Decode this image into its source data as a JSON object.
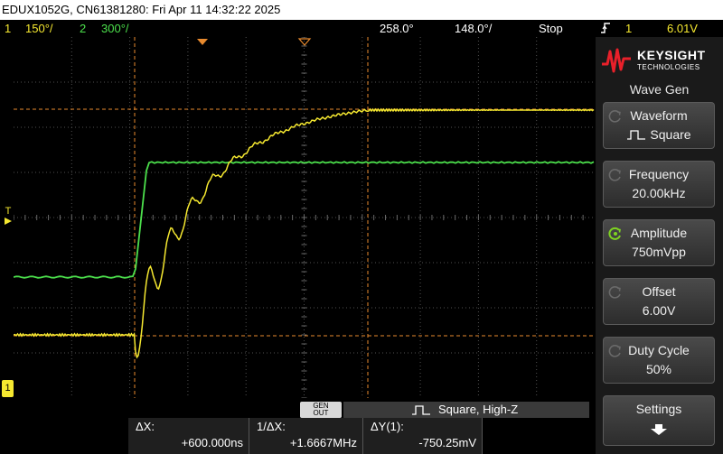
{
  "header": {
    "title": "EDUX1052G, CN61381280: Fri Apr 11 14:32:22 2025"
  },
  "status": {
    "ch1_num": "1",
    "ch1_scale": "150°/",
    "ch2_num": "2",
    "ch2_scale": "300°/",
    "timebase_delay": "258.0°",
    "timebase_scale": "148.0°/",
    "run_state": "Stop",
    "trigger_icon": "trigger-rising-edge-icon",
    "trigger_channel": "1",
    "trigger_level": "6.01V"
  },
  "brand": {
    "name_line1": "KEYSIGHT",
    "name_line2": "TECHNOLOGIES",
    "logo_icon": "keysight-wave-logo-icon",
    "logo_color": "#e8202a"
  },
  "menu": {
    "title": "Wave Gen",
    "softkeys": [
      {
        "label": "Waveform",
        "value": "Square",
        "value_icon": "square-wave-icon",
        "knob_active": false
      },
      {
        "label": "Frequency",
        "value": "20.00kHz",
        "knob_active": false
      },
      {
        "label": "Amplitude",
        "value": "750mVpp",
        "knob_active": true
      },
      {
        "label": "Offset",
        "value": "6.00V",
        "knob_active": false
      },
      {
        "label": "Duty Cycle",
        "value": "50%",
        "knob_active": false
      },
      {
        "label": "Settings",
        "value": "",
        "value_icon": "arrow-down-icon",
        "knob_active": false
      }
    ]
  },
  "markers": {
    "trigger_marker": "T",
    "ch1_ground_marker": "1"
  },
  "gen": {
    "button_line1": "GEN",
    "button_line2": "OUT",
    "status": "Square, High-Z",
    "status_icon": "square-wave-icon"
  },
  "measurements": {
    "dx_label": "ΔX:",
    "dx_value": "+600.000ns",
    "inv_dx_label": "1/ΔX:",
    "inv_dx_value": "+1.6667MHz",
    "dy_label": "ΔY(1):",
    "dy_value": "-750.25mV"
  },
  "colors": {
    "ch1": "#f5e830",
    "ch2": "#4ce04c",
    "cursor": "#e88a2e",
    "grid": "#505050",
    "knob_active": "#7ed321"
  }
}
